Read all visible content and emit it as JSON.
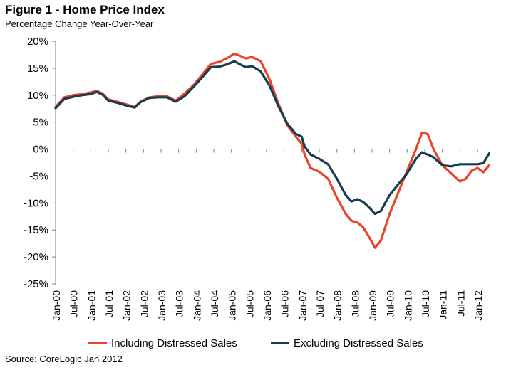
{
  "chart_data": {
    "type": "line",
    "title": "Figure 1 - Home Price Index",
    "subtitle": "Percentage Change Year-Over-Year",
    "source": "Source: CoreLogic Jan 2012",
    "ylim": [
      -25,
      20
    ],
    "yticks": [
      "20%",
      "15%",
      "10%",
      "5%",
      "0%",
      "-5%",
      "-10%",
      "-15%",
      "-20%",
      "-25%"
    ],
    "ytick_values": [
      20,
      15,
      10,
      5,
      0,
      -5,
      -10,
      -15,
      -20,
      -25
    ],
    "x_start": "Jan-00",
    "x_end": "Jan-12",
    "xticks": [
      "Jan-00",
      "Jul-00",
      "Jan-01",
      "Jul-01",
      "Jan-02",
      "Jul-02",
      "Jan-03",
      "Jul-03",
      "Jan-04",
      "Jul-04",
      "Jan-05",
      "Jul-05",
      "Jan-06",
      "Jul-06",
      "Jan-07",
      "Jul-07",
      "Jan-08",
      "Jul-08",
      "Jan-09",
      "Jul-09",
      "Jan-10",
      "Jul-10",
      "Jan-11",
      "Jul-11",
      "Jan-12"
    ],
    "legend_position": "bottom",
    "grid": false,
    "series": [
      {
        "name": "Including Distressed Sales",
        "color": "#e8442b",
        "points": [
          [
            "Jan-00",
            7.8
          ],
          [
            "Apr-00",
            9.6
          ],
          [
            "Jul-00",
            10.0
          ],
          [
            "Oct-00",
            10.2
          ],
          [
            "Jan-01",
            10.5
          ],
          [
            "Mar-01",
            10.8
          ],
          [
            "May-01",
            10.3
          ],
          [
            "Jul-01",
            9.2
          ],
          [
            "Oct-01",
            8.8
          ],
          [
            "Jan-02",
            8.3
          ],
          [
            "Apr-02",
            7.8
          ],
          [
            "Jun-02",
            8.8
          ],
          [
            "Sep-02",
            9.6
          ],
          [
            "Dec-02",
            9.8
          ],
          [
            "Mar-03",
            9.8
          ],
          [
            "Jun-03",
            9.0
          ],
          [
            "Sep-03",
            10.3
          ],
          [
            "Dec-03",
            11.8
          ],
          [
            "Mar-04",
            13.8
          ],
          [
            "Jun-04",
            15.8
          ],
          [
            "Sep-04",
            16.2
          ],
          [
            "Dec-04",
            17.0
          ],
          [
            "Feb-05",
            17.7
          ],
          [
            "Apr-05",
            17.3
          ],
          [
            "Jun-05",
            16.8
          ],
          [
            "Aug-05",
            17.1
          ],
          [
            "Nov-05",
            16.3
          ],
          [
            "Feb-06",
            13.0
          ],
          [
            "May-06",
            8.5
          ],
          [
            "Aug-06",
            4.5
          ],
          [
            "Nov-06",
            2.3
          ],
          [
            "Jan-07",
            1.0
          ],
          [
            "Feb-07",
            -1.0
          ],
          [
            "Apr-07",
            -3.5
          ],
          [
            "Jul-07",
            -4.2
          ],
          [
            "Oct-07",
            -5.5
          ],
          [
            "Jan-08",
            -9.0
          ],
          [
            "Apr-08",
            -12.0
          ],
          [
            "Jun-08",
            -13.3
          ],
          [
            "Aug-08",
            -13.6
          ],
          [
            "Oct-08",
            -14.5
          ],
          [
            "Dec-08",
            -16.3
          ],
          [
            "Feb-09",
            -18.3
          ],
          [
            "Apr-09",
            -17.0
          ],
          [
            "Jul-09",
            -12.0
          ],
          [
            "Oct-09",
            -8.0
          ],
          [
            "Jan-10",
            -4.0
          ],
          [
            "Apr-10",
            0.0
          ],
          [
            "Jun-10",
            3.0
          ],
          [
            "Aug-10",
            2.8
          ],
          [
            "Oct-10",
            0.0
          ],
          [
            "Jan-11",
            -3.0
          ],
          [
            "Apr-11",
            -4.5
          ],
          [
            "Jul-11",
            -6.0
          ],
          [
            "Sep-11",
            -5.5
          ],
          [
            "Nov-11",
            -4.0
          ],
          [
            "Jan-12",
            -3.5
          ],
          [
            "Mar-12",
            -4.3
          ],
          [
            "May-12",
            -3.0
          ]
        ]
      },
      {
        "name": "Excluding Distressed Sales",
        "color": "#153d4e",
        "points": [
          [
            "Jan-00",
            7.6
          ],
          [
            "Apr-00",
            9.3
          ],
          [
            "Jul-00",
            9.7
          ],
          [
            "Oct-00",
            10.0
          ],
          [
            "Jan-01",
            10.2
          ],
          [
            "Mar-01",
            10.6
          ],
          [
            "May-01",
            10.1
          ],
          [
            "Jul-01",
            9.0
          ],
          [
            "Oct-01",
            8.6
          ],
          [
            "Jan-02",
            8.1
          ],
          [
            "Apr-02",
            7.7
          ],
          [
            "Jun-02",
            8.7
          ],
          [
            "Sep-02",
            9.5
          ],
          [
            "Dec-02",
            9.6
          ],
          [
            "Mar-03",
            9.6
          ],
          [
            "Jun-03",
            8.8
          ],
          [
            "Sep-03",
            9.8
          ],
          [
            "Dec-03",
            11.5
          ],
          [
            "Mar-04",
            13.3
          ],
          [
            "Jun-04",
            15.2
          ],
          [
            "Sep-04",
            15.3
          ],
          [
            "Dec-04",
            15.8
          ],
          [
            "Feb-05",
            16.3
          ],
          [
            "Apr-05",
            15.7
          ],
          [
            "Jun-05",
            15.2
          ],
          [
            "Aug-05",
            15.4
          ],
          [
            "Nov-05",
            14.4
          ],
          [
            "Feb-06",
            11.8
          ],
          [
            "May-06",
            8.0
          ],
          [
            "Aug-06",
            4.8
          ],
          [
            "Nov-06",
            2.8
          ],
          [
            "Jan-07",
            2.3
          ],
          [
            "Feb-07",
            0.5
          ],
          [
            "Apr-07",
            -1.0
          ],
          [
            "Jul-07",
            -1.8
          ],
          [
            "Oct-07",
            -2.8
          ],
          [
            "Jan-08",
            -5.5
          ],
          [
            "Apr-08",
            -8.5
          ],
          [
            "Jun-08",
            -9.7
          ],
          [
            "Aug-08",
            -9.3
          ],
          [
            "Oct-08",
            -9.8
          ],
          [
            "Dec-08",
            -10.8
          ],
          [
            "Feb-09",
            -12.0
          ],
          [
            "Apr-09",
            -11.5
          ],
          [
            "Jul-09",
            -8.5
          ],
          [
            "Oct-09",
            -6.5
          ],
          [
            "Jan-10",
            -4.5
          ],
          [
            "Apr-10",
            -1.8
          ],
          [
            "Jun-10",
            -0.6
          ],
          [
            "Aug-10",
            -1.0
          ],
          [
            "Oct-10",
            -1.5
          ],
          [
            "Jan-11",
            -3.0
          ],
          [
            "Apr-11",
            -3.2
          ],
          [
            "Jul-11",
            -2.8
          ],
          [
            "Sep-11",
            -2.8
          ],
          [
            "Nov-11",
            -2.8
          ],
          [
            "Jan-12",
            -2.8
          ],
          [
            "Mar-12",
            -2.6
          ],
          [
            "May-12",
            -0.8
          ]
        ]
      }
    ]
  }
}
